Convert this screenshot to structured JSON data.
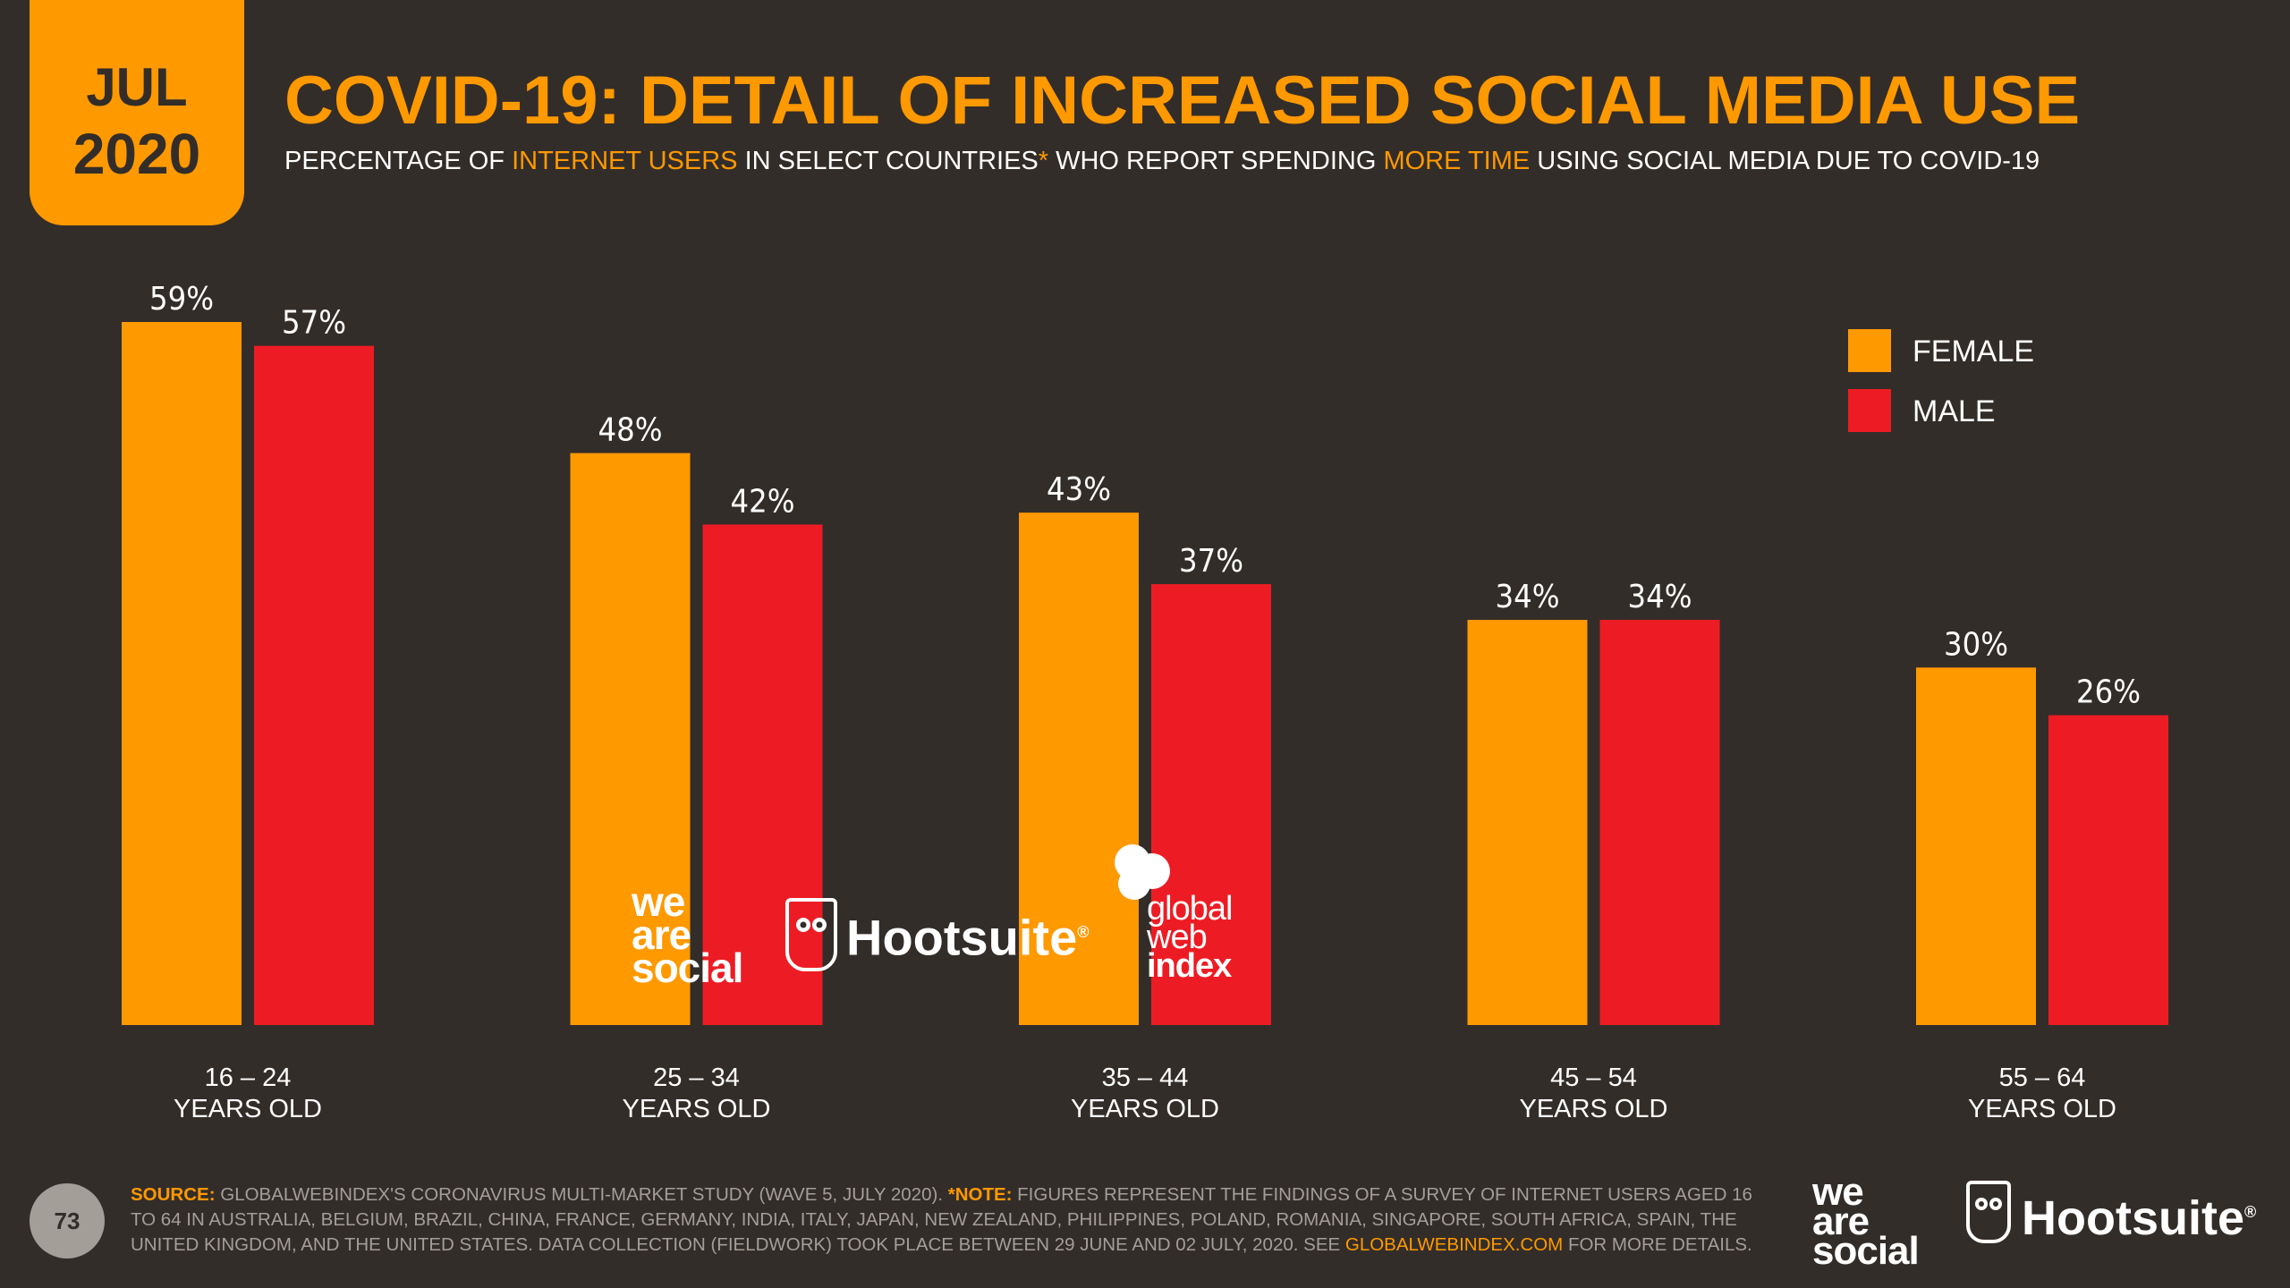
{
  "date_badge": {
    "month": "JUL",
    "year": "2020"
  },
  "header": {
    "title": "COVID-19: DETAIL OF INCREASED SOCIAL MEDIA USE",
    "subtitle_parts": [
      "PERCENTAGE OF ",
      "INTERNET USERS",
      " IN SELECT COUNTRIES",
      "*",
      " WHO REPORT SPENDING ",
      "MORE TIME",
      " USING SOCIAL MEDIA DUE TO COVID-19"
    ]
  },
  "colors": {
    "background": "#332d29",
    "female": "#ff9900",
    "male": "#ed1c24",
    "text": "#ffffff",
    "muted": "#a49e98"
  },
  "chart_data": {
    "type": "bar",
    "title": "COVID-19: DETAIL OF INCREASED SOCIAL MEDIA USE",
    "categories": [
      {
        "range": "16 – 24",
        "sub": "YEARS OLD"
      },
      {
        "range": "25 – 34",
        "sub": "YEARS OLD"
      },
      {
        "range": "35 – 44",
        "sub": "YEARS OLD"
      },
      {
        "range": "45 – 54",
        "sub": "YEARS OLD"
      },
      {
        "range": "55 – 64",
        "sub": "YEARS OLD"
      }
    ],
    "series": [
      {
        "name": "FEMALE",
        "color": "#ff9900",
        "values": [
          59,
          48,
          43,
          34,
          30
        ],
        "labels": [
          "59%",
          "48%",
          "43%",
          "34%",
          "30%"
        ]
      },
      {
        "name": "MALE",
        "color": "#ed1c24",
        "values": [
          57,
          42,
          37,
          34,
          26
        ],
        "labels": [
          "57%",
          "42%",
          "37%",
          "34%",
          "26%"
        ]
      }
    ],
    "ylim": [
      0,
      59
    ],
    "legend_position": "top-right",
    "grid": false
  },
  "watermarks": {
    "we_are_social": [
      "we",
      "are",
      "social"
    ],
    "hootsuite": "Hootsuite",
    "hootsuite_mark": "®",
    "gwi": [
      "global",
      "web",
      "index"
    ]
  },
  "footer": {
    "page_number": "73",
    "source_label": "SOURCE:",
    "source_text": " GLOBALWEBINDEX'S CORONAVIRUS MULTI-MARKET STUDY (WAVE 5, JULY 2020). ",
    "note_label": "*NOTE:",
    "note_text": " FIGURES REPRESENT THE FINDINGS OF A SURVEY OF INTERNET USERS AGED 16 TO 64 IN AUSTRALIA, BELGIUM, BRAZIL, CHINA, FRANCE, GERMANY, INDIA, ITALY, JAPAN, NEW ZEALAND, PHILIPPINES, POLAND, ROMANIA, SINGAPORE, SOUTH AFRICA, SPAIN, THE UNITED KINGDOM, AND THE UNITED STATES. DATA COLLECTION (FIELDWORK) TOOK PLACE BETWEEN 29 JUNE AND 02 JULY, 2020. SEE ",
    "link_text": "GLOBALWEBINDEX.COM",
    "tail_text": " FOR MORE DETAILS."
  }
}
